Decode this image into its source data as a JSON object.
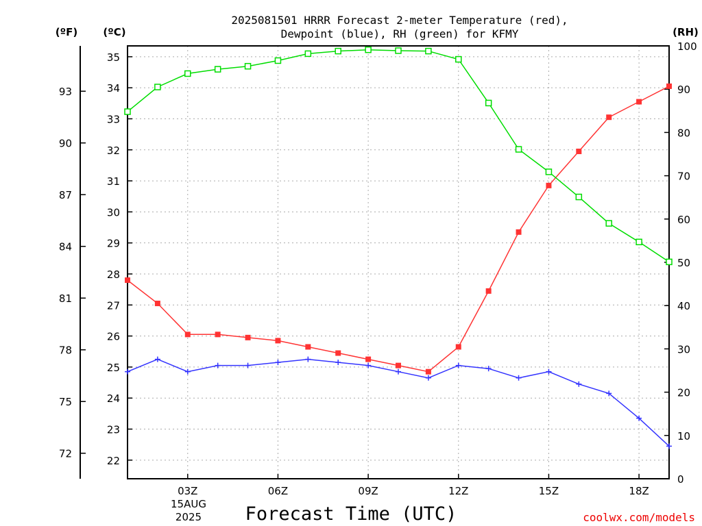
{
  "chart_data": {
    "type": "line",
    "title": [
      "2025081501 HRRR Forecast 2-meter Temperature (red),",
      "Dewpoint (blue), RH (green) for KFMY"
    ],
    "xlabel": "Forecast Time (UTC)",
    "units": {
      "fahrenheit": "(ºF)",
      "celsius": "(ºC)",
      "rh": "(RH)"
    },
    "x": [
      1,
      2,
      3,
      4,
      5,
      6,
      7,
      8,
      9,
      10,
      11,
      12,
      13,
      14,
      15,
      16,
      17,
      18,
      19
    ],
    "x_ticks": [
      {
        "x": 3,
        "label": "03Z"
      },
      {
        "x": 6,
        "label": "06Z"
      },
      {
        "x": 9,
        "label": "09Z"
      },
      {
        "x": 12,
        "label": "12Z"
      },
      {
        "x": 15,
        "label": "15Z"
      },
      {
        "x": 18,
        "label": "18Z"
      }
    ],
    "date_label": [
      "15AUG",
      "2025"
    ],
    "xlim": [
      1,
      19
    ],
    "ylim_celsius": [
      21.4,
      35.35
    ],
    "ylim_rh": [
      0,
      100
    ],
    "celsius_ticks": [
      22,
      23,
      24,
      25,
      26,
      27,
      28,
      29,
      30,
      31,
      32,
      33,
      34,
      35
    ],
    "fahrenheit_ticks": [
      72,
      75,
      78,
      81,
      84,
      87,
      90,
      93
    ],
    "rh_ticks": [
      0,
      10,
      20,
      30,
      40,
      50,
      60,
      70,
      80,
      90,
      100
    ],
    "grid": true,
    "series": [
      {
        "name": "Temperature",
        "axis": "celsius",
        "color": "#ff3333",
        "marker": "filled-square",
        "values": [
          27.8,
          27.05,
          26.05,
          26.05,
          25.95,
          25.85,
          25.65,
          25.45,
          25.25,
          25.05,
          24.85,
          25.65,
          27.45,
          29.35,
          30.85,
          31.95,
          33.05,
          33.55,
          34.05
        ]
      },
      {
        "name": "Dewpoint",
        "axis": "celsius",
        "color": "#3333ff",
        "marker": "plus",
        "values": [
          24.85,
          25.25,
          24.85,
          25.05,
          25.05,
          25.15,
          25.25,
          25.15,
          25.05,
          24.85,
          24.65,
          25.05,
          24.95,
          24.65,
          24.85,
          24.45,
          24.15,
          23.35,
          22.45
        ]
      },
      {
        "name": "RH",
        "axis": "rh",
        "color": "#00dd00",
        "marker": "open-square",
        "values": [
          84.8,
          90.5,
          93.6,
          94.6,
          95.3,
          96.6,
          98.2,
          98.8,
          99.1,
          98.9,
          98.8,
          96.9,
          86.8,
          76.1,
          70.9,
          65.1,
          59.0,
          54.7,
          50.1
        ]
      }
    ]
  },
  "credit": "coolwx.com/models",
  "credit_color": "#ee0000"
}
